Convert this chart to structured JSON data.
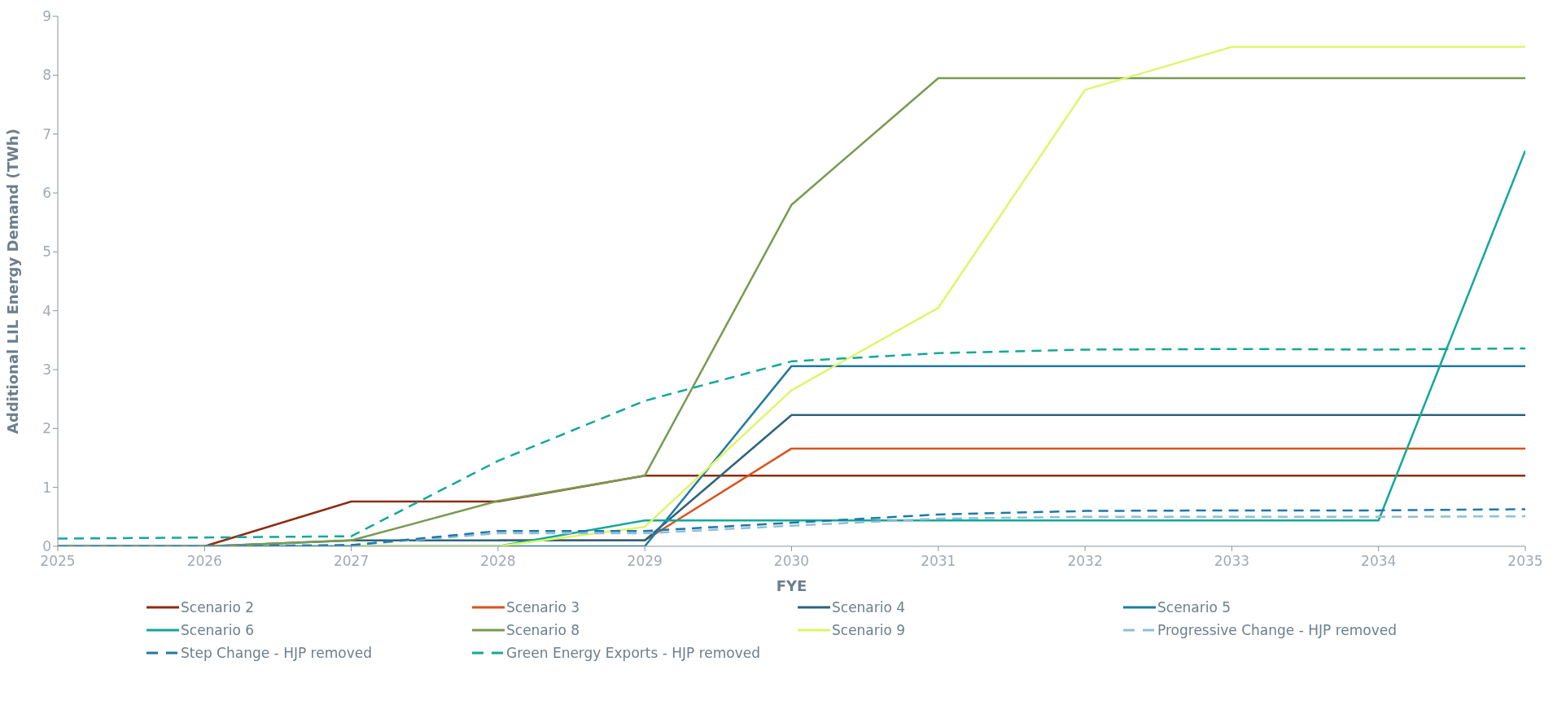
{
  "chart_data": {
    "type": "line",
    "xlabel": "FYE",
    "ylabel": "Additional LIL Energy Demand (TWh)",
    "x": [
      2025,
      2026,
      2027,
      2028,
      2029,
      2030,
      2031,
      2032,
      2033,
      2034,
      2035
    ],
    "xlim": [
      2025,
      2035
    ],
    "xticks": [
      2025,
      2026,
      2027,
      2028,
      2029,
      2030,
      2031,
      2032,
      2033,
      2034,
      2035
    ],
    "ylim": [
      0,
      9
    ],
    "yticks": [
      0,
      1,
      2,
      3,
      4,
      5,
      6,
      7,
      8,
      9
    ],
    "grid": false,
    "legend": "bottom",
    "marker": "none",
    "series": [
      {
        "name": "Scenario 2",
        "color": "#8b2e14",
        "line_style": "solid",
        "values": [
          0,
          0,
          0.76,
          0.76,
          1.2,
          1.2,
          1.2,
          1.2,
          1.2,
          1.2,
          1.2
        ]
      },
      {
        "name": "Scenario 3",
        "color": "#d9531e",
        "line_style": "solid",
        "values": [
          null,
          null,
          null,
          0.1,
          0.1,
          1.66,
          1.66,
          1.66,
          1.66,
          1.66,
          1.66
        ]
      },
      {
        "name": "Scenario 4",
        "color": "#2e6479",
        "line_style": "solid",
        "values": [
          0,
          0,
          0.1,
          0.1,
          0.1,
          2.23,
          2.23,
          2.23,
          2.23,
          2.23,
          2.23
        ]
      },
      {
        "name": "Scenario 5",
        "color": "#1f7aa0",
        "line_style": "solid",
        "values": [
          0,
          0,
          0,
          0,
          0,
          3.06,
          3.06,
          3.06,
          3.06,
          3.06,
          3.06
        ]
      },
      {
        "name": "Scenario 6",
        "color": "#12a89a",
        "line_style": "solid",
        "values": [
          0,
          0,
          0,
          0,
          0.44,
          0.44,
          0.44,
          0.44,
          0.44,
          0.44,
          6.72
        ]
      },
      {
        "name": "Scenario 8",
        "color": "#7a9a50",
        "line_style": "solid",
        "values": [
          0,
          0,
          0.1,
          0.77,
          1.2,
          5.8,
          7.95,
          7.95,
          7.95,
          7.95,
          7.95
        ]
      },
      {
        "name": "Scenario 9",
        "color": "#dff56a",
        "line_style": "solid",
        "values": [
          null,
          null,
          0,
          0,
          0.33,
          2.65,
          4.05,
          7.75,
          8.48,
          8.48,
          8.48
        ]
      },
      {
        "name": "Progressive Change - HJP removed",
        "color": "#8fbfd6",
        "line_style": "dashed",
        "values": [
          0,
          0,
          0.02,
          0.22,
          0.22,
          0.35,
          0.47,
          0.5,
          0.5,
          0.5,
          0.51
        ]
      },
      {
        "name": "Step Change - HJP removed",
        "color": "#1f78a8",
        "line_style": "dashed",
        "values": [
          0,
          0,
          0.02,
          0.26,
          0.26,
          0.4,
          0.54,
          0.6,
          0.61,
          0.61,
          0.63
        ]
      },
      {
        "name": "Green Energy Exports - HJP removed",
        "color": "#12a89a",
        "line_style": "dashed",
        "values": [
          0.13,
          0.15,
          0.17,
          1.45,
          2.47,
          3.14,
          3.28,
          3.34,
          3.35,
          3.34,
          3.36
        ]
      }
    ]
  }
}
